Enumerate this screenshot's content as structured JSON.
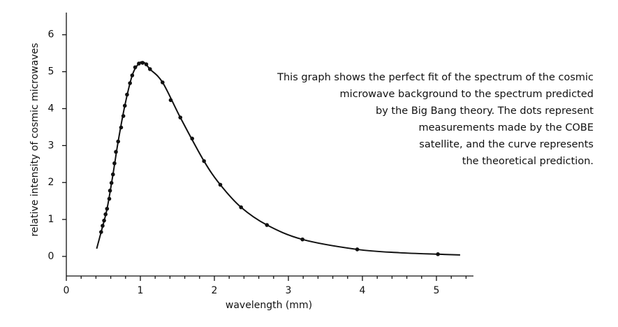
{
  "chart_data": {
    "type": "line-scatter",
    "x_label": "wavelength (mm)",
    "y_label": "relative intensity of cosmic microwaves",
    "annotation": [
      "This graph shows the perfect fit of the spectrum of the cosmic",
      "microwave background to the spectrum predicted",
      "by the Big Bang theory. The dots represent",
      "measurements made by the COBE",
      "satellite, and the curve represents",
      "the theoretical prediction."
    ],
    "xlim": [
      0,
      5.5
    ],
    "ylim": [
      -0.53,
      6.6
    ],
    "xticks": [
      0,
      1,
      2,
      3,
      4,
      5
    ],
    "xminorticks": [
      0.2,
      0.4,
      0.6,
      0.8,
      1.2,
      1.4,
      1.6,
      1.8,
      2.2,
      2.4,
      2.6,
      2.8,
      3.2,
      3.4,
      3.6,
      3.8,
      4.2,
      4.4,
      4.6,
      4.8,
      5.2,
      5.4
    ],
    "yticks": [
      0,
      1,
      2,
      3,
      4,
      5,
      6
    ],
    "curve": {
      "color": "#111111",
      "x": [
        0.41,
        0.47,
        0.55,
        0.63,
        0.7,
        0.79,
        0.89,
        0.98,
        1.05,
        1.13,
        1.3,
        1.54,
        1.86,
        2.08,
        2.36,
        2.71,
        3.19,
        3.93,
        4.5,
        5.02,
        5.32
      ],
      "y": [
        0.21,
        0.66,
        1.29,
        2.22,
        3.11,
        4.08,
        4.9,
        5.22,
        5.25,
        5.07,
        4.71,
        3.76,
        2.58,
        1.94,
        1.33,
        0.85,
        0.46,
        0.19,
        0.1,
        0.06,
        0.04
      ]
    },
    "points": {
      "color": "#111111",
      "x": [
        0.47,
        0.49,
        0.51,
        0.53,
        0.55,
        0.58,
        0.59,
        0.61,
        0.63,
        0.65,
        0.67,
        0.7,
        0.74,
        0.77,
        0.79,
        0.82,
        0.86,
        0.89,
        0.93,
        0.98,
        1.03,
        1.08,
        1.13,
        1.3,
        1.41,
        1.54,
        1.7,
        1.86,
        2.08,
        2.36,
        2.71,
        3.19,
        3.93,
        5.02
      ],
      "y": [
        0.66,
        0.83,
        0.97,
        1.14,
        1.29,
        1.56,
        1.78,
        1.99,
        2.22,
        2.52,
        2.83,
        3.11,
        3.49,
        3.8,
        4.08,
        4.38,
        4.69,
        4.9,
        5.12,
        5.22,
        5.24,
        5.2,
        5.07,
        4.71,
        4.23,
        3.76,
        3.19,
        2.58,
        1.94,
        1.33,
        0.85,
        0.46,
        0.19,
        0.06
      ]
    }
  }
}
